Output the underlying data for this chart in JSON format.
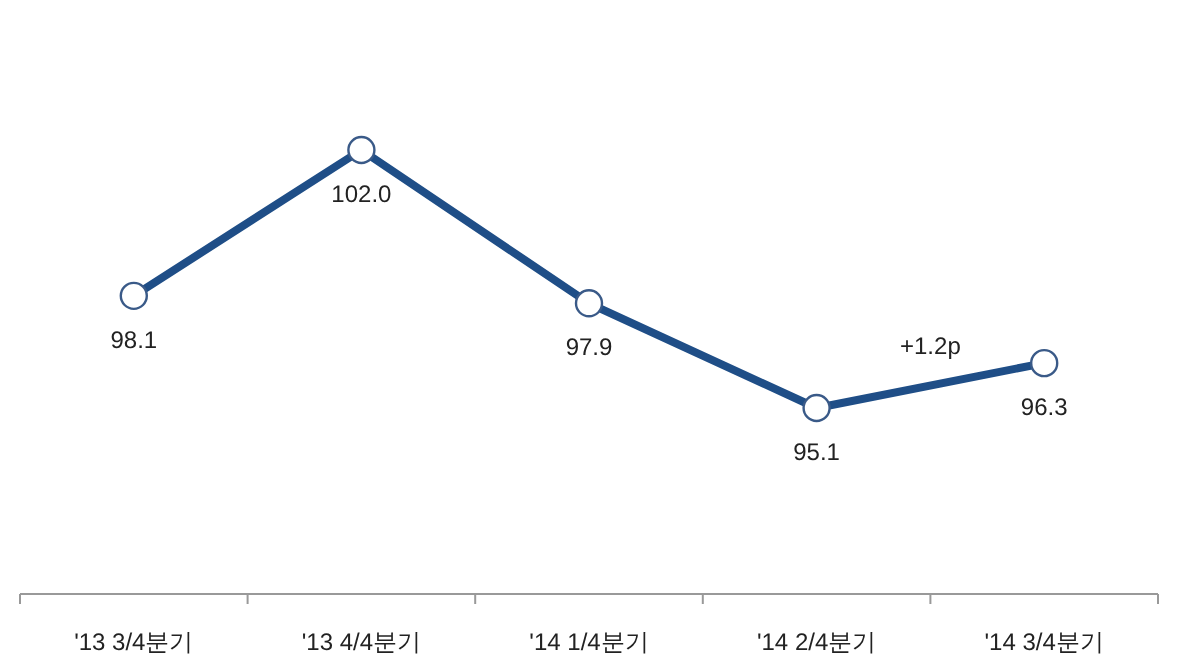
{
  "chart_data": {
    "type": "line",
    "categories": [
      "'13 3/4분기",
      "'13 4/4분기",
      "'14 1/4분기",
      "'14 2/4분기",
      "'14 3/4분기"
    ],
    "series": [
      {
        "color": "#1f4e87",
        "values": [
          98.1,
          102.0,
          97.9,
          95.1,
          96.3
        ],
        "value_labels": [
          "98.1",
          "102.0",
          "97.9",
          "95.1",
          "96.3"
        ]
      }
    ],
    "marker": "circle",
    "line_style": "solid",
    "annotations": [
      "+1.2p"
    ]
  }
}
